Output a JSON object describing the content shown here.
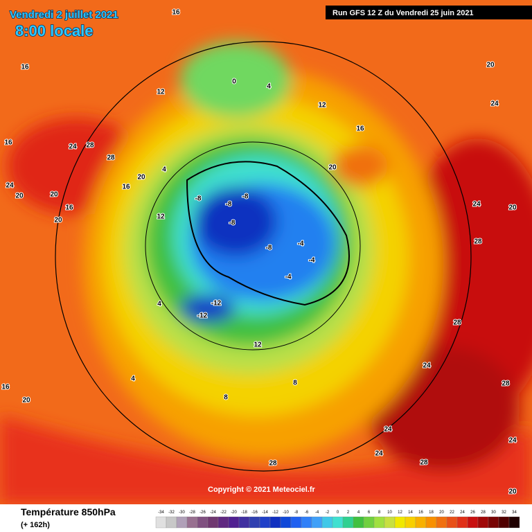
{
  "header": {
    "date": "Vendredi 2 juillet 2021",
    "time": "8:00 locale",
    "run": "Run GFS 12 Z du Vendredi 25 juin 2021"
  },
  "copyright": "Copyright © 2021 Meteociel.fr",
  "footer": {
    "title": "Température 850hPa",
    "lead": "(+ 162h)"
  },
  "scale": [
    -34,
    -32,
    -30,
    -28,
    -26,
    -24,
    -22,
    -20,
    -18,
    -16,
    -14,
    -12,
    -10,
    -8,
    -6,
    -4,
    -2,
    0,
    2,
    4,
    6,
    8,
    10,
    12,
    14,
    16,
    18,
    20,
    22,
    24,
    26,
    28,
    30,
    32,
    34
  ],
  "map_labels": [
    16,
    16,
    12,
    16,
    24,
    20,
    20,
    16,
    20,
    24,
    28,
    28,
    20,
    4,
    -8,
    -8,
    -8,
    -8,
    -8,
    -4,
    -4,
    -4,
    -12,
    -12,
    0,
    4,
    12,
    20,
    16,
    20,
    24,
    24,
    28,
    20,
    28,
    28,
    24,
    28,
    24,
    28,
    8,
    8,
    12,
    4,
    4,
    20,
    16,
    16,
    12,
    24,
    20,
    24
  ]
}
